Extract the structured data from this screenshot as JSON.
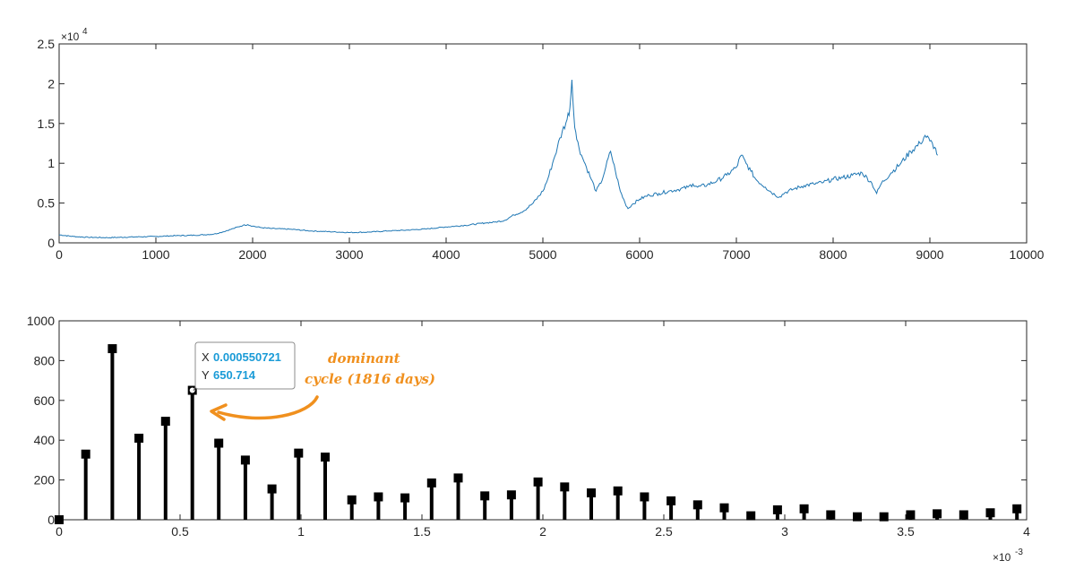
{
  "chart_data": [
    {
      "type": "line",
      "title": "",
      "xlabel": "",
      "ylabel": "",
      "xlim": [
        0,
        10000
      ],
      "ylim": [
        0,
        25000
      ],
      "xticks": [
        0,
        1000,
        2000,
        3000,
        4000,
        5000,
        6000,
        7000,
        8000,
        9000,
        10000
      ],
      "xtick_labels": [
        "0",
        "1000",
        "2000",
        "3000",
        "4000",
        "5000",
        "6000",
        "7000",
        "8000",
        "9000",
        "10000"
      ],
      "yticks": [
        0,
        5000,
        10000,
        15000,
        20000,
        25000
      ],
      "ytick_labels": [
        "0",
        "0.5",
        "1",
        "1.5",
        "2",
        "2.5"
      ],
      "y_exponent_label": "×10",
      "y_exponent": "4",
      "grid": false,
      "color": "#1f77b4",
      "series": [
        {
          "x": [
            0,
            150,
            300,
            500,
            800,
            1000,
            1200,
            1400,
            1600,
            1700,
            1800,
            1900,
            1950,
            2000,
            2100,
            2200,
            2400,
            2600,
            2800,
            3000,
            3200,
            3400,
            3600,
            3800,
            4000,
            4200,
            4400,
            4500,
            4600,
            4700,
            4800,
            4900,
            5000,
            5050,
            5100,
            5150,
            5200,
            5250,
            5280,
            5300,
            5320,
            5350,
            5400,
            5450,
            5500,
            5550,
            5600,
            5650,
            5700,
            5750,
            5800,
            5850,
            5880,
            5920,
            6000,
            6100,
            6200,
            6300,
            6400,
            6500,
            6550,
            6600,
            6700,
            6800,
            6900,
            7000,
            7050,
            7100,
            7150,
            7200,
            7300,
            7400,
            7450,
            7500,
            7600,
            7700,
            7800,
            7900,
            8000,
            8100,
            8200,
            8300,
            8400,
            8450,
            8500,
            8600,
            8700,
            8800,
            8900,
            8950,
            9000,
            9050,
            9080
          ],
          "y": [
            1000,
            800,
            700,
            650,
            750,
            800,
            900,
            950,
            1100,
            1400,
            1800,
            2200,
            2300,
            2100,
            1900,
            1800,
            1700,
            1500,
            1400,
            1300,
            1350,
            1500,
            1600,
            1750,
            2000,
            2200,
            2500,
            2600,
            2800,
            3500,
            4000,
            5000,
            6500,
            8000,
            10000,
            12000,
            14000,
            15500,
            17000,
            20500,
            16000,
            13000,
            11000,
            9500,
            8000,
            6500,
            7500,
            9500,
            11500,
            9000,
            6500,
            5000,
            4300,
            4800,
            5500,
            6000,
            6200,
            6500,
            6700,
            7000,
            7400,
            7000,
            7300,
            7800,
            8500,
            9500,
            11000,
            10000,
            9000,
            8000,
            7000,
            6000,
            5800,
            6300,
            6800,
            7200,
            7400,
            7600,
            8000,
            8200,
            8500,
            8800,
            7500,
            6200,
            7500,
            8800,
            10000,
            11500,
            12500,
            13500,
            12800,
            12000,
            11000
          ]
        }
      ]
    },
    {
      "type": "stem",
      "title": "",
      "xlabel": "",
      "ylabel": "",
      "xlim": [
        0,
        0.004
      ],
      "ylim": [
        0,
        1000
      ],
      "xticks": [
        0,
        0.0005,
        0.001,
        0.0015,
        0.002,
        0.0025,
        0.003,
        0.0035,
        0.004
      ],
      "xtick_labels": [
        "0",
        "0.5",
        "1",
        "1.5",
        "2",
        "2.5",
        "3",
        "3.5",
        "4"
      ],
      "x_exponent_label": "×10",
      "x_exponent": "-3",
      "yticks": [
        0,
        200,
        400,
        600,
        800,
        1000
      ],
      "ytick_labels": [
        "0",
        "200",
        "400",
        "600",
        "800",
        "1000"
      ],
      "grid": false,
      "color": "#000000",
      "x": [
        0,
        0.00011,
        0.00022,
        0.00033,
        0.00044,
        0.000550721,
        0.00066,
        0.00077,
        0.00088,
        0.00099,
        0.0011,
        0.00121,
        0.00132,
        0.00143,
        0.00154,
        0.00165,
        0.00176,
        0.00187,
        0.00198,
        0.00209,
        0.0022,
        0.00231,
        0.00242,
        0.00253,
        0.00264,
        0.00275,
        0.00286,
        0.00297,
        0.00308,
        0.00319,
        0.0033,
        0.00341,
        0.00352,
        0.00363,
        0.00374,
        0.00385,
        0.00396
      ],
      "y": [
        0,
        330,
        860,
        410,
        495,
        650.714,
        385,
        300,
        155,
        335,
        315,
        100,
        115,
        110,
        185,
        210,
        120,
        125,
        190,
        165,
        135,
        145,
        115,
        95,
        75,
        60,
        20,
        50,
        55,
        25,
        15,
        15,
        25,
        30,
        25,
        35,
        55
      ],
      "datatip": {
        "x_key": "X",
        "x_value": "0.000550721",
        "y_key": "Y",
        "y_value": "650.714",
        "point_index": 5
      },
      "annotation": {
        "lines": [
          "dominant",
          "cycle (1816 days)"
        ],
        "color": "#f0901e"
      }
    }
  ]
}
